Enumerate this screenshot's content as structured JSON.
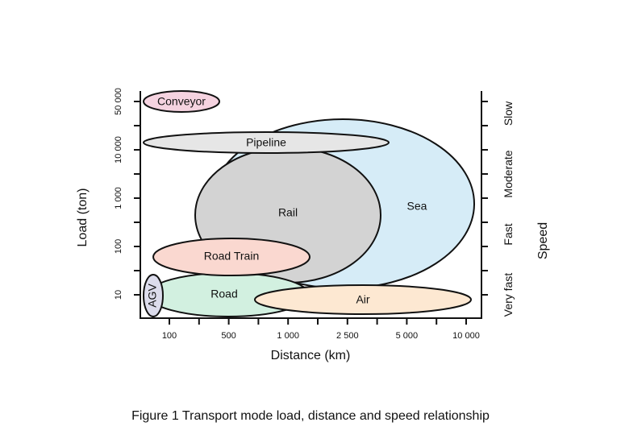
{
  "figure": {
    "caption": "Figure 1 Transport mode load, distance and speed relationship",
    "x_axis": {
      "label": "Distance (km)",
      "ticks": [
        "100",
        "500",
        "1 000",
        "2 500",
        "5 000",
        "10 000"
      ]
    },
    "y_axis": {
      "label": "Load (ton)",
      "ticks": [
        "50 000",
        "10 000",
        "1 000",
        "100",
        "10"
      ]
    },
    "speed_axis": {
      "label": "Speed",
      "ticks": [
        "Slow",
        "Moderate",
        "Fast",
        "Very fast"
      ]
    },
    "modes": [
      {
        "name": "Sea",
        "color": "#d6ecf7"
      },
      {
        "name": "Rail",
        "color": "#d3d3d3"
      },
      {
        "name": "Pipeline",
        "color": "#e6e6e6"
      },
      {
        "name": "Conveyor",
        "color": "#f5d3e0"
      },
      {
        "name": "Road",
        "color": "#d2f0e0"
      },
      {
        "name": "Road Train",
        "color": "#fad8d0"
      },
      {
        "name": "AGV",
        "color": "#dcdcec"
      },
      {
        "name": "Air",
        "color": "#fde8d2"
      }
    ]
  }
}
